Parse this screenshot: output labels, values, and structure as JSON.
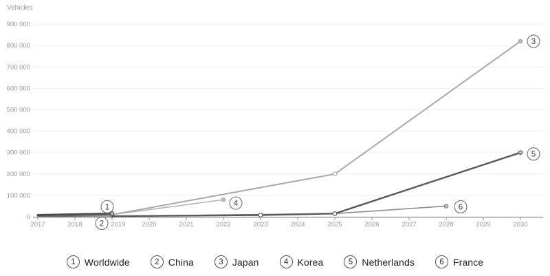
{
  "chart_data": {
    "type": "line",
    "title": "",
    "ylabel": "Vehicles",
    "xlabel": "",
    "grid": "horizontal",
    "legend_position": "bottom-center",
    "xlim": [
      2017,
      2030
    ],
    "ylim": [
      0,
      900000
    ],
    "x_ticks": [
      2017,
      2018,
      2019,
      2020,
      2021,
      2022,
      2023,
      2024,
      2025,
      2026,
      2027,
      2028,
      2029,
      2030
    ],
    "y_ticks": [
      {
        "value": 0,
        "label": "0"
      },
      {
        "value": 100000,
        "label": "100 000"
      },
      {
        "value": 200000,
        "label": "200 000"
      },
      {
        "value": 300000,
        "label": "300 000"
      },
      {
        "value": 400000,
        "label": "400 000"
      },
      {
        "value": 500000,
        "label": "500 000"
      },
      {
        "value": 600000,
        "label": "600 000"
      },
      {
        "value": 700000,
        "label": "700 000"
      },
      {
        "value": 800000,
        "label": "800 000"
      },
      {
        "value": 900000,
        "label": "900 000"
      }
    ],
    "series": [
      {
        "id": "1",
        "name": "Worldwide",
        "color": "#4d4d4d",
        "width": 3,
        "points": [
          [
            2017,
            8000
          ],
          [
            2019,
            15000
          ]
        ],
        "label_offset": [
          -7,
          -10
        ]
      },
      {
        "id": "2",
        "name": "China",
        "color": "#6e6e6e",
        "width": 2,
        "points": [
          [
            2017,
            2000
          ],
          [
            2019,
            5000
          ]
        ],
        "label_offset": [
          -15,
          11
        ]
      },
      {
        "id": "3",
        "name": "Japan",
        "color": "#a9a9a9",
        "width": 2,
        "points": [
          [
            2019,
            10000
          ],
          [
            2025,
            200000
          ],
          [
            2030,
            820000
          ]
        ],
        "label_offset": [
          19,
          0
        ]
      },
      {
        "id": "4",
        "name": "Korea",
        "color": "#b3b3b3",
        "width": 1.6,
        "points": [
          [
            2019,
            10000
          ],
          [
            2022,
            80000
          ]
        ],
        "label_offset": [
          18,
          5
        ]
      },
      {
        "id": "5",
        "name": "Netherlands",
        "color": "#595959",
        "width": 2.4,
        "points": [
          [
            2019,
            3000
          ],
          [
            2023,
            8000
          ],
          [
            2025,
            15000
          ],
          [
            2030,
            300000
          ]
        ],
        "label_offset": [
          19,
          2
        ]
      },
      {
        "id": "6",
        "name": "France",
        "color": "#8d8d8d",
        "width": 1.6,
        "points": [
          [
            2019,
            3000
          ],
          [
            2025,
            15000
          ],
          [
            2028,
            50000
          ]
        ],
        "label_offset": [
          21,
          1
        ]
      }
    ]
  },
  "legend": {
    "items": [
      {
        "num": "1",
        "label": "Worldwide"
      },
      {
        "num": "2",
        "label": "China"
      },
      {
        "num": "3",
        "label": "Japan"
      },
      {
        "num": "4",
        "label": "Korea"
      },
      {
        "num": "5",
        "label": "Netherlands"
      },
      {
        "num": "6",
        "label": "France"
      }
    ]
  },
  "colors": {
    "background": "#ffffff",
    "gridline": "#ededed",
    "axis": "#8f8f8f",
    "tick_text": "#979797",
    "legend_text": "#222222"
  }
}
